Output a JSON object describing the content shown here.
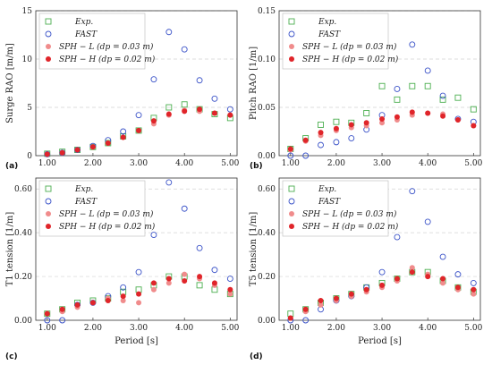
{
  "chart_data": [
    {
      "type": "scatter",
      "panel_label": "(a)",
      "title": "",
      "xlabel": "",
      "ylabel": "Surge RAO [m/m]",
      "xlim": [
        0.75,
        5.15
      ],
      "ylim": [
        0,
        15
      ],
      "xticks": [
        "1.00",
        "2.00",
        "3.00",
        "4.00",
        "5.00"
      ],
      "yticks": [
        "0",
        "5",
        "10",
        "15"
      ],
      "grid": "horizontal dashed",
      "legend": "top-left",
      "series": [
        {
          "name": "Exp.",
          "marker": "square-open",
          "color": "#4caf50",
          "x": [
            1.0,
            1.33,
            1.66,
            2.0,
            2.33,
            2.66,
            3.0,
            3.33,
            3.66,
            4.0,
            4.33,
            4.66,
            5.0
          ],
          "y": [
            0.2,
            0.4,
            0.6,
            0.9,
            1.3,
            2.0,
            2.6,
            3.9,
            5.0,
            5.3,
            4.8,
            4.3,
            3.9
          ]
        },
        {
          "name": "FAST",
          "marker": "circle-open",
          "color": "#3a52c8",
          "x": [
            1.0,
            1.33,
            1.66,
            2.0,
            2.33,
            2.66,
            3.0,
            3.33,
            3.66,
            4.0,
            4.33,
            4.66,
            5.0
          ],
          "y": [
            0.15,
            0.3,
            0.6,
            1.0,
            1.6,
            2.5,
            4.2,
            7.9,
            12.8,
            11.0,
            7.8,
            5.9,
            4.8
          ]
        },
        {
          "name": "SPH − L (dp = 0.03 m)",
          "marker": "circle-filled",
          "color": "#f08c8c",
          "x": [
            1.0,
            1.33,
            1.66,
            2.0,
            2.33,
            2.66,
            3.0,
            3.33,
            3.66,
            4.0,
            4.33,
            4.66,
            5.0
          ],
          "y": [
            0.15,
            0.3,
            0.6,
            0.9,
            1.3,
            1.9,
            2.6,
            3.3,
            4.2,
            4.7,
            4.6,
            4.4,
            4.2
          ]
        },
        {
          "name": "SPH − H (dp = 0.02 m)",
          "marker": "circle-filled",
          "color": "#e0252a",
          "x": [
            1.0,
            1.33,
            1.66,
            2.0,
            2.33,
            2.66,
            3.0,
            3.33,
            3.66,
            4.0,
            4.33,
            4.66,
            5.0
          ],
          "y": [
            0.15,
            0.3,
            0.6,
            0.9,
            1.3,
            1.9,
            2.6,
            3.6,
            4.3,
            4.6,
            4.8,
            4.4,
            4.2
          ]
        }
      ]
    },
    {
      "type": "scatter",
      "panel_label": "(b)",
      "title": "",
      "xlabel": "",
      "ylabel": "Pitch RAO [1/m]",
      "xlim": [
        0.75,
        5.15
      ],
      "ylim": [
        0,
        0.15
      ],
      "xticks": [
        "1.00",
        "2.00",
        "3.00",
        "4.00",
        "5.00"
      ],
      "yticks": [
        "0.00",
        "0.05",
        "0.10",
        "0.15"
      ],
      "grid": "horizontal dashed",
      "legend": "top-left",
      "series": [
        {
          "name": "Exp.",
          "marker": "square-open",
          "color": "#4caf50",
          "x": [
            1.0,
            1.33,
            1.66,
            2.0,
            2.33,
            2.66,
            3.0,
            3.33,
            3.66,
            4.0,
            4.33,
            4.66,
            5.0
          ],
          "y": [
            0.007,
            0.018,
            0.032,
            0.035,
            0.034,
            0.044,
            0.072,
            0.058,
            0.072,
            0.072,
            0.058,
            0.06,
            0.048
          ]
        },
        {
          "name": "FAST",
          "marker": "circle-open",
          "color": "#3a52c8",
          "x": [
            1.0,
            1.33,
            1.66,
            2.0,
            2.33,
            2.66,
            3.0,
            3.33,
            3.66,
            4.0,
            4.33,
            4.66,
            5.0
          ],
          "y": [
            0.0,
            0.0,
            0.011,
            0.014,
            0.018,
            0.027,
            0.042,
            0.069,
            0.115,
            0.088,
            0.062,
            0.038,
            0.035
          ]
        },
        {
          "name": "SPH − L (dp = 0.03 m)",
          "marker": "circle-filled",
          "color": "#f08c8c",
          "x": [
            1.0,
            1.33,
            1.66,
            2.0,
            2.33,
            2.66,
            3.0,
            3.33,
            3.66,
            4.0,
            4.33,
            4.66,
            5.0
          ],
          "y": [
            0.006,
            0.015,
            0.021,
            0.026,
            0.029,
            0.031,
            0.034,
            0.037,
            0.042,
            0.044,
            0.043,
            0.037,
            0.031
          ]
        },
        {
          "name": "SPH − H (dp = 0.02 m)",
          "marker": "circle-filled",
          "color": "#e0252a",
          "x": [
            1.0,
            1.33,
            1.66,
            2.0,
            2.33,
            2.66,
            3.0,
            3.33,
            3.66,
            4.0,
            4.33,
            4.66,
            5.0
          ],
          "y": [
            0.007,
            0.016,
            0.024,
            0.028,
            0.032,
            0.034,
            0.038,
            0.04,
            0.045,
            0.044,
            0.041,
            0.037,
            0.031
          ]
        }
      ]
    },
    {
      "type": "scatter",
      "panel_label": "(c)",
      "title": "",
      "xlabel": "Period [s]",
      "ylabel": "T1 tension [1/m]",
      "xlim": [
        0.75,
        5.15
      ],
      "ylim": [
        0,
        0.65
      ],
      "xticks": [
        "1.00",
        "2.00",
        "3.00",
        "4.00",
        "5.00"
      ],
      "yticks": [
        "0.00",
        "0.20",
        "0.40",
        "0.60"
      ],
      "grid": "horizontal dashed",
      "legend": "top-left",
      "series": [
        {
          "name": "Exp.",
          "marker": "square-open",
          "color": "#4caf50",
          "x": [
            1.0,
            1.33,
            1.66,
            2.0,
            2.33,
            2.66,
            3.0,
            3.33,
            3.66,
            4.0,
            4.33,
            4.66,
            5.0
          ],
          "y": [
            0.03,
            0.05,
            0.08,
            0.09,
            0.1,
            0.13,
            0.14,
            0.16,
            0.2,
            0.2,
            0.16,
            0.14,
            0.12
          ]
        },
        {
          "name": "FAST",
          "marker": "circle-open",
          "color": "#3a52c8",
          "x": [
            1.0,
            1.33,
            1.66,
            2.0,
            2.33,
            2.66,
            3.0,
            3.33,
            3.66,
            4.0,
            4.33,
            4.66,
            5.0
          ],
          "y": [
            0.0,
            0.0,
            0.07,
            0.08,
            0.11,
            0.15,
            0.22,
            0.39,
            0.63,
            0.51,
            0.33,
            0.23,
            0.19
          ]
        },
        {
          "name": "SPH − L (dp = 0.03 m)",
          "marker": "circle-filled",
          "color": "#f08c8c",
          "x": [
            1.0,
            1.33,
            1.66,
            2.0,
            2.33,
            2.66,
            3.0,
            3.33,
            3.66,
            4.0,
            4.33,
            4.66,
            5.0
          ],
          "y": [
            0.03,
            0.04,
            0.06,
            0.08,
            0.1,
            0.09,
            0.08,
            0.14,
            0.17,
            0.21,
            0.19,
            0.16,
            0.12
          ]
        },
        {
          "name": "SPH − H (dp = 0.02 m)",
          "marker": "circle-filled",
          "color": "#e0252a",
          "x": [
            1.0,
            1.33,
            1.66,
            2.0,
            2.33,
            2.66,
            3.0,
            3.33,
            3.66,
            4.0,
            4.33,
            4.66,
            5.0
          ],
          "y": [
            0.03,
            0.05,
            0.07,
            0.08,
            0.09,
            0.11,
            0.12,
            0.17,
            0.19,
            0.18,
            0.2,
            0.17,
            0.14
          ]
        }
      ]
    },
    {
      "type": "scatter",
      "panel_label": "(d)",
      "title": "",
      "xlabel": "Period [s]",
      "ylabel": "T5 tension [1/m]",
      "xlim": [
        0.75,
        5.15
      ],
      "ylim": [
        0,
        0.65
      ],
      "xticks": [
        "1.00",
        "2.00",
        "3.00",
        "4.00",
        "5.00"
      ],
      "yticks": [
        "0.00",
        "0.20",
        "0.40",
        "0.60"
      ],
      "grid": "horizontal dashed",
      "legend": "top-left",
      "series": [
        {
          "name": "Exp.",
          "marker": "square-open",
          "color": "#4caf50",
          "x": [
            1.0,
            1.33,
            1.66,
            2.0,
            2.33,
            2.66,
            3.0,
            3.33,
            3.66,
            4.0,
            4.33,
            4.66,
            5.0
          ],
          "y": [
            0.03,
            0.05,
            0.08,
            0.1,
            0.12,
            0.15,
            0.17,
            0.19,
            0.22,
            0.22,
            0.18,
            0.15,
            0.13
          ]
        },
        {
          "name": "FAST",
          "marker": "circle-open",
          "color": "#3a52c8",
          "x": [
            1.0,
            1.33,
            1.66,
            2.0,
            2.33,
            2.66,
            3.0,
            3.33,
            3.66,
            4.0,
            4.33,
            4.66,
            5.0
          ],
          "y": [
            0.0,
            0.0,
            0.05,
            0.09,
            0.11,
            0.15,
            0.22,
            0.38,
            0.59,
            0.45,
            0.29,
            0.21,
            0.17
          ]
        },
        {
          "name": "SPH − L (dp = 0.03 m)",
          "marker": "circle-filled",
          "color": "#f08c8c",
          "x": [
            1.0,
            1.33,
            1.66,
            2.0,
            2.33,
            2.66,
            3.0,
            3.33,
            3.66,
            4.0,
            4.33,
            4.66,
            5.0
          ],
          "y": [
            0.01,
            0.04,
            0.07,
            0.09,
            0.11,
            0.13,
            0.15,
            0.18,
            0.24,
            0.21,
            0.17,
            0.14,
            0.12
          ]
        },
        {
          "name": "SPH − H (dp = 0.02 m)",
          "marker": "circle-filled",
          "color": "#e0252a",
          "x": [
            1.0,
            1.33,
            1.66,
            2.0,
            2.33,
            2.66,
            3.0,
            3.33,
            3.66,
            4.0,
            4.33,
            4.66,
            5.0
          ],
          "y": [
            0.01,
            0.05,
            0.09,
            0.1,
            0.12,
            0.14,
            0.16,
            0.19,
            0.22,
            0.2,
            0.19,
            0.15,
            0.14
          ]
        }
      ]
    }
  ]
}
